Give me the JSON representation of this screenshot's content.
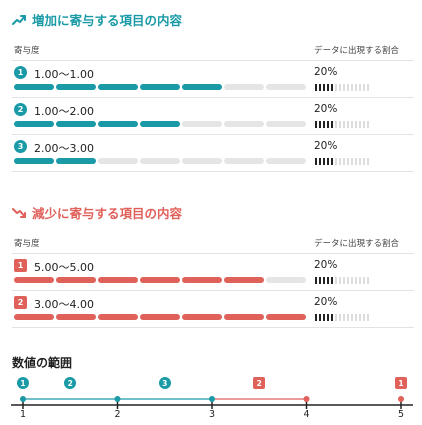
{
  "increase": {
    "title": "増加に寄与する項目の内容",
    "col_contribution": "寄与度",
    "col_ratio": "データに出現する割合",
    "items": [
      {
        "badge": "1",
        "range": "1.00〜1.00",
        "filled_segments": 5,
        "ratio": "20%"
      },
      {
        "badge": "2",
        "range": "1.00〜2.00",
        "filled_segments": 4,
        "ratio": "20%"
      },
      {
        "badge": "3",
        "range": "2.00〜3.00",
        "filled_segments": 2,
        "ratio": "20%"
      }
    ]
  },
  "decrease": {
    "title": "減少に寄与する項目の内容",
    "col_contribution": "寄与度",
    "col_ratio": "データに出現する割合",
    "items": [
      {
        "badge": "1",
        "range": "5.00〜5.00",
        "filled_segments": 6,
        "ratio": "20%"
      },
      {
        "badge": "2",
        "range": "3.00〜4.00",
        "filled_segments": 7,
        "ratio": "20%"
      }
    ]
  },
  "total_segments": 7,
  "ratio_ticks_filled": 5,
  "ratio_ticks_total": 14,
  "scale": {
    "title": "数値の範囲",
    "axis_labels": [
      "1",
      "2",
      "3",
      "4",
      "5"
    ],
    "markers": [
      {
        "badge": "1",
        "kind": "increase"
      },
      {
        "badge": "2",
        "kind": "increase"
      },
      {
        "badge": "3",
        "kind": "increase"
      },
      {
        "badge": "2",
        "kind": "decrease"
      },
      {
        "badge": "1",
        "kind": "decrease"
      }
    ]
  },
  "colors": {
    "teal": "#1a9aa6",
    "red": "#e0605a",
    "empty": "#e5e5e5"
  }
}
